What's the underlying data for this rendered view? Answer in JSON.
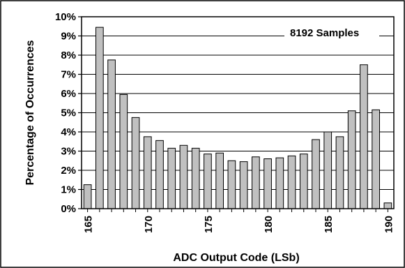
{
  "chart_data": {
    "type": "bar",
    "annotation": "8192 Samples",
    "xlabel": "ADC Output Code (LSb)",
    "ylabel": "Percentage of Occurrences",
    "x_ticks": [
      "165",
      "170",
      "175",
      "180",
      "185",
      "190"
    ],
    "y_ticks": [
      "0%",
      "1%",
      "2%",
      "3%",
      "4%",
      "5%",
      "6%",
      "7%",
      "8%",
      "9%",
      "10%"
    ],
    "ylim": [
      0,
      10
    ],
    "grid": "horizontal",
    "bar_color": "#c0c0c0",
    "categories": [
      165,
      166,
      167,
      168,
      169,
      170,
      171,
      172,
      173,
      174,
      175,
      176,
      177,
      178,
      179,
      180,
      181,
      182,
      183,
      184,
      185,
      186,
      187,
      188,
      189,
      190
    ],
    "values": [
      1.25,
      9.45,
      7.75,
      5.95,
      4.75,
      3.75,
      3.55,
      3.15,
      3.3,
      3.15,
      2.85,
      2.9,
      2.5,
      2.45,
      2.7,
      2.6,
      2.65,
      2.75,
      2.85,
      3.6,
      4.0,
      3.75,
      5.1,
      7.5,
      5.15,
      0.3
    ]
  }
}
